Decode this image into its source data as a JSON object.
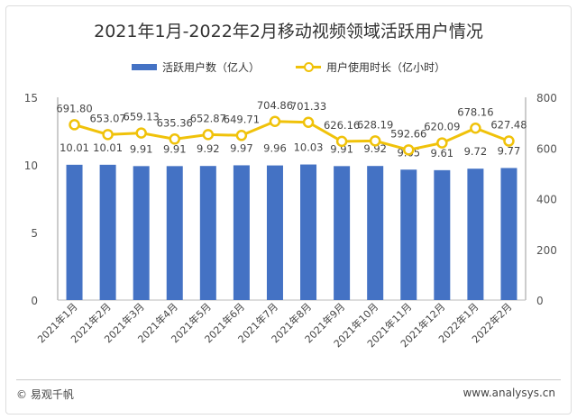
{
  "chart_data": {
    "type": "bar+line",
    "title": "2021年1月-2022年2月移动视频领域活跃用户情况",
    "categories": [
      "2021年1月",
      "2021年2月",
      "2021年3月",
      "2021年4月",
      "2021年5月",
      "2021年6月",
      "2021年7月",
      "2021年8月",
      "2021年9月",
      "2021年10月",
      "2021年11月",
      "2021年12月",
      "2022年1月",
      "2022年2月"
    ],
    "series": [
      {
        "name": "活跃用户数（亿人）",
        "type": "bar",
        "axis": "left",
        "color": "#4472c4",
        "values": [
          10.01,
          10.01,
          9.91,
          9.91,
          9.92,
          9.97,
          9.96,
          10.03,
          9.91,
          9.92,
          9.65,
          9.61,
          9.72,
          9.77
        ],
        "labels": [
          "10.01",
          "10.01",
          "9.91",
          "9.91",
          "9.92",
          "9.97",
          "9.96",
          "10.03",
          "9.91",
          "9.92",
          "9.65",
          "9.61",
          "9.72",
          "9.77"
        ]
      },
      {
        "name": "用户使用时长（亿小时）",
        "type": "line",
        "axis": "right",
        "color": "#f0c20a",
        "values": [
          691.8,
          653.07,
          659.13,
          635.36,
          652.87,
          649.71,
          704.86,
          701.33,
          626.16,
          628.19,
          592.66,
          620.09,
          678.16,
          627.48
        ],
        "labels": [
          "691.80",
          "653.07",
          "659.13",
          "635.36",
          "652.87",
          "649.71",
          "704.86",
          "701.33",
          "626.16",
          "628.19",
          "592.66",
          "620.09",
          "678.16",
          "627.48"
        ]
      }
    ],
    "yleft": {
      "range": [
        0,
        15
      ],
      "ticks": [
        "0",
        "5",
        "10",
        "15"
      ]
    },
    "yright": {
      "range": [
        0,
        800
      ],
      "ticks": [
        "0",
        "200",
        "400",
        "600",
        "800"
      ]
    },
    "legend": "top",
    "grid": false
  },
  "footer": {
    "left": "© 易观千帆",
    "right": "www.analysys.cn"
  }
}
